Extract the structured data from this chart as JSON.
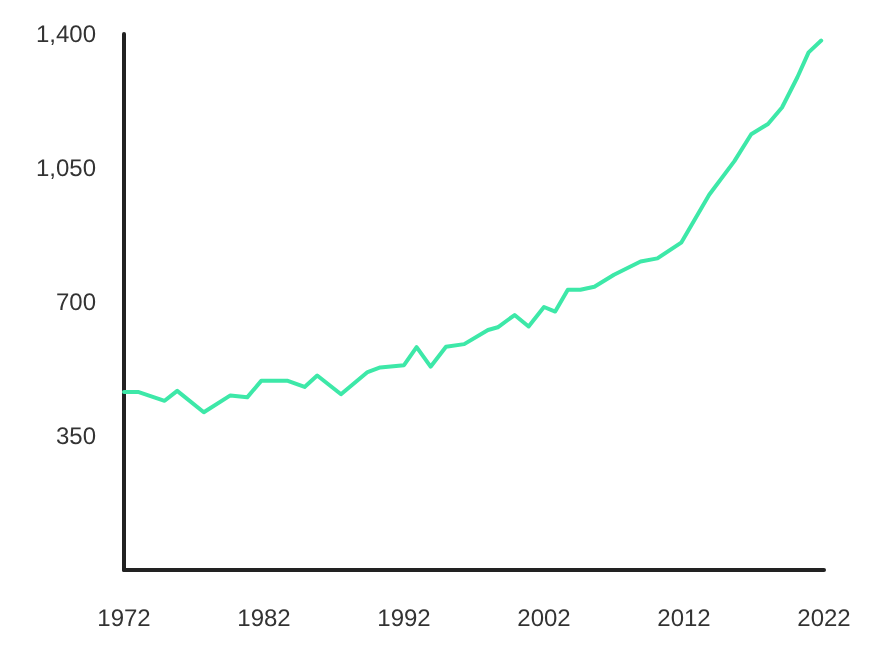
{
  "chart_data": {
    "type": "line",
    "x": [
      1972,
      1973,
      1974.9,
      1975.8,
      1977.7,
      1979.6,
      1980.8,
      1981.8,
      1983.7,
      1984.9,
      1985.8,
      1987.5,
      1989.4,
      1990.3,
      1992,
      1992.9,
      1993.9,
      1995,
      1996.3,
      1998,
      1998.7,
      1999.9,
      2000.9,
      2002,
      2002.8,
      2003.7,
      2004.6,
      2005.6,
      2007,
      2008.9,
      2010.1,
      2011.8,
      2013.8,
      2015.6,
      2016.8,
      2018,
      2019,
      2020.1,
      2020.9,
      2021.8
    ],
    "series": [
      {
        "color": "#3de8a8",
        "values": [
          465,
          465,
          442,
          468,
          412,
          456,
          451,
          494,
          494,
          478,
          508,
          459,
          517,
          529,
          535,
          582,
          531,
          583,
          590,
          627,
          634,
          666,
          636,
          687,
          675,
          732,
          732,
          740,
          771,
          806,
          814,
          855,
          980,
          1068,
          1138,
          1165,
          1208,
          1287,
          1352,
          1383
        ]
      }
    ],
    "xlim": [
      1972,
      2022
    ],
    "xticks": [
      1972,
      1982,
      1992,
      2002,
      2012,
      2022
    ],
    "ylim": [
      0,
      1400
    ],
    "yticks": [
      {
        "value": 350,
        "label": "350"
      },
      {
        "value": 700,
        "label": "700"
      },
      {
        "value": 1050,
        "label": "1,050"
      },
      {
        "value": 1400,
        "label": "1,400"
      }
    ],
    "grid": false,
    "marker": "none",
    "line_style": "solid"
  }
}
